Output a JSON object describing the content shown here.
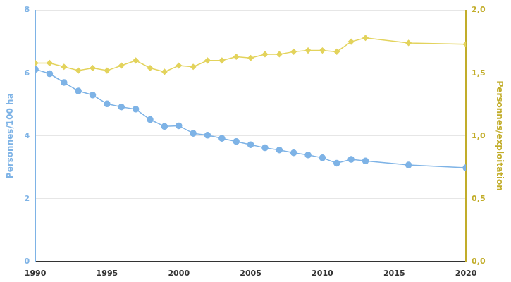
{
  "chart_data": {
    "type": "line",
    "x": [
      1990,
      1991,
      1992,
      1993,
      1994,
      1995,
      1996,
      1997,
      1998,
      1999,
      2000,
      2001,
      2002,
      2003,
      2004,
      2005,
      2006,
      2007,
      2008,
      2009,
      2010,
      2011,
      2012,
      2013,
      2016,
      2020
    ],
    "xlim": [
      1990,
      2020
    ],
    "xticks": [
      1990,
      1995,
      2000,
      2005,
      2010,
      2015,
      2020
    ],
    "y_label": "Personnes/100 ha",
    "y2_label": "Personnes/exploitation",
    "ylim": [
      0,
      8
    ],
    "yticks": [
      0,
      2,
      4,
      6,
      8
    ],
    "y2lim": [
      0,
      2
    ],
    "y2ticks": [
      {
        "value": 0,
        "label": "0,0"
      },
      {
        "value": 0.5,
        "label": "0,5"
      },
      {
        "value": 1,
        "label": "1,0"
      },
      {
        "value": 1.5,
        "label": "1,5"
      },
      {
        "value": 2,
        "label": "2,0"
      }
    ],
    "grid": true,
    "series": [
      {
        "name": "Personnes/100 ha",
        "color": "#7eb3e6",
        "marker": "circle",
        "axis": "y",
        "values": [
          6.12,
          5.98,
          5.7,
          5.43,
          5.3,
          5.02,
          4.92,
          4.85,
          4.52,
          4.3,
          4.32,
          4.08,
          4.02,
          3.92,
          3.82,
          3.72,
          3.62,
          3.55,
          3.46,
          3.39,
          3.3,
          3.13,
          3.25,
          3.2,
          3.07,
          2.98
        ]
      },
      {
        "name": "Personnes/exploitation",
        "color": "#e3d35c",
        "marker": "diamond",
        "axis": "y2",
        "values": [
          1.58,
          1.58,
          1.55,
          1.52,
          1.54,
          1.52,
          1.56,
          1.6,
          1.54,
          1.51,
          1.56,
          1.55,
          1.6,
          1.6,
          1.63,
          1.62,
          1.65,
          1.65,
          1.67,
          1.68,
          1.68,
          1.67,
          1.75,
          1.78,
          1.74,
          1.73
        ]
      }
    ]
  }
}
